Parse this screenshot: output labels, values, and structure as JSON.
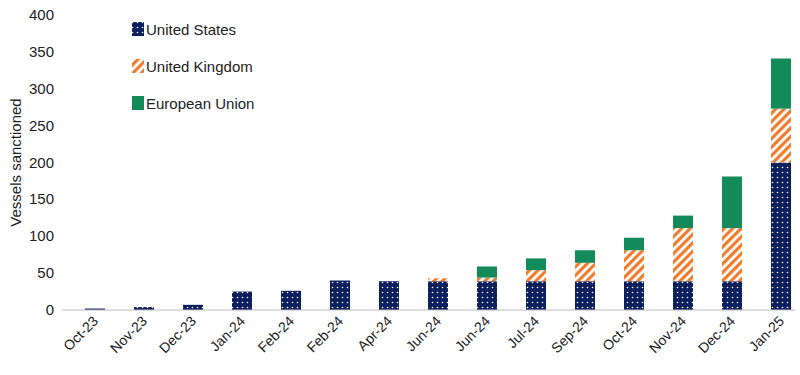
{
  "chart_data": {
    "type": "bar",
    "stacked": true,
    "y_label": "Vessels sanctioned",
    "categories": [
      "Oct-23",
      "Nov-23",
      "Dec-23",
      "Jan-24",
      "Feb-24",
      "Feb-24",
      "Apr-24",
      "Jun-24",
      "Jun-24",
      "Jul-24",
      "Sep-24",
      "Oct-24",
      "Nov-24",
      "Dec-24",
      "Jan-25"
    ],
    "series": [
      {
        "name": "United States",
        "color": "#0b1f5e",
        "values": [
          2,
          4,
          7,
          25,
          26,
          40,
          39,
          39,
          39,
          39,
          39,
          39,
          39,
          39,
          200
        ]
      },
      {
        "name": "United Kingdom",
        "color": "#f07d2e",
        "values": [
          0,
          0,
          0,
          0,
          0,
          0,
          0,
          4,
          5,
          15,
          25,
          42,
          72,
          72,
          73
        ]
      },
      {
        "name": "European Union",
        "color": "#138a5a",
        "values": [
          0,
          0,
          0,
          0,
          0,
          0,
          0,
          0,
          15,
          16,
          17,
          17,
          17,
          70,
          68
        ]
      }
    ],
    "ylim": [
      0,
      400
    ],
    "yticks": [
      0,
      50,
      100,
      150,
      200,
      250,
      300,
      350,
      400
    ],
    "grid": false,
    "legend": "top-left"
  }
}
